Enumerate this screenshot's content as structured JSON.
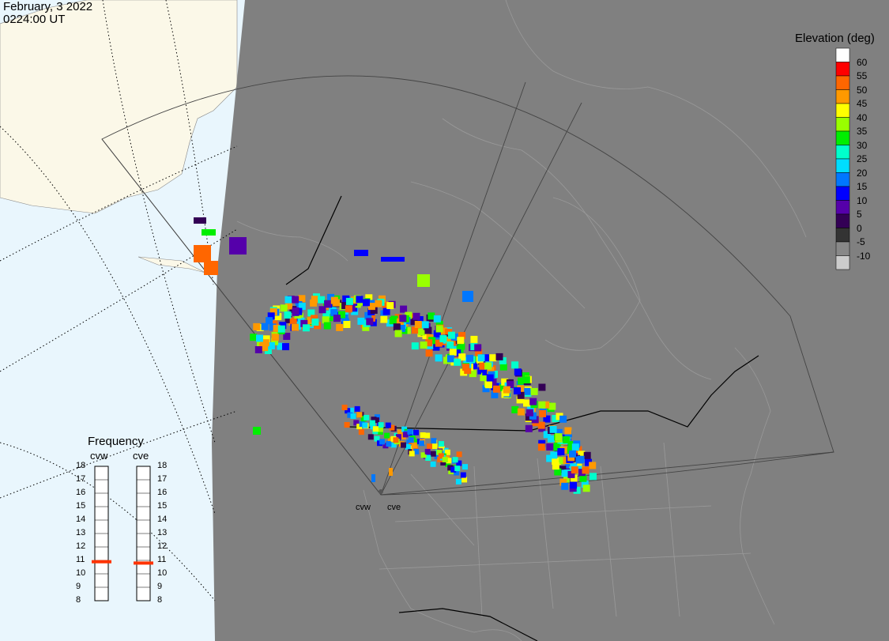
{
  "header": {
    "date": "February, 3 2022",
    "time": "0224:00 UT"
  },
  "colorbar": {
    "title": "Elevation (deg)",
    "labels": [
      "60",
      "55",
      "50",
      "45",
      "40",
      "35",
      "30",
      "25",
      "20",
      "15",
      "10",
      "5",
      "0",
      "-5",
      "-10"
    ],
    "colors": [
      "#ffffff",
      "#ff0000",
      "#ff6600",
      "#ff9900",
      "#ffff00",
      "#99ff00",
      "#00ee00",
      "#00ffcc",
      "#00ddff",
      "#0077ff",
      "#0000ff",
      "#5500aa",
      "#330055",
      "#333333",
      "#888888",
      "#cccccc"
    ]
  },
  "frequency": {
    "title": "Frequency",
    "radars": [
      {
        "name": "cvw",
        "value_mhz": 10.9
      },
      {
        "name": "cve",
        "value_mhz": 10.8
      }
    ],
    "scale": [
      "18",
      "17",
      "16",
      "15",
      "14",
      "13",
      "12",
      "11",
      "10",
      "9",
      "8"
    ]
  },
  "sites": [
    {
      "name": "cvw"
    },
    {
      "name": "cve"
    }
  ],
  "map": {
    "night_color": "#808080",
    "ocean_color": "#e9f6fd",
    "land_day_color": "#fbf8e8",
    "scatter_colors": [
      "#ff9900",
      "#0000ff",
      "#00ddff",
      "#ffff00",
      "#5500aa",
      "#0077ff",
      "#00ffcc",
      "#99ff00",
      "#00ee00",
      "#330055",
      "#ff6600"
    ]
  }
}
